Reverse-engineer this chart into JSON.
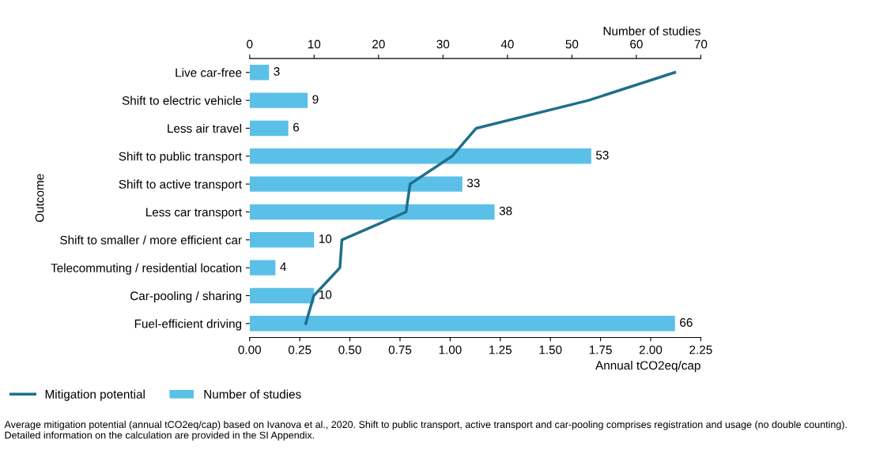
{
  "chart_data": {
    "type": "bar",
    "orientation": "horizontal",
    "ylabel": "Outcome",
    "xlabel": "Annual tCO2eq/cap",
    "x2label": "Number of studies",
    "categories": [
      "Live car-free",
      "Shift to electric vehicle",
      "Less air travel",
      "Shift to public transport",
      "Shift to active transport",
      "Less car transport",
      "Shift to smaller / more efficient car",
      "Telecommuting / residential location",
      "Car-pooling / sharing",
      "Fuel-efficient driving"
    ],
    "series": [
      {
        "name": "Mitigation potential",
        "type": "line",
        "color": "#1f6f8b",
        "values": [
          2.12,
          1.69,
          1.13,
          1.01,
          0.8,
          0.78,
          0.46,
          0.45,
          0.32,
          0.28
        ]
      },
      {
        "name": "Number of studies",
        "axis": "x2",
        "color": "#5bc0e8",
        "values": [
          3,
          9,
          6,
          53,
          33,
          38,
          10,
          4,
          10,
          66
        ],
        "value_labels": [
          "3",
          "9",
          "6",
          "53",
          "33",
          "38",
          "10",
          "4",
          "10",
          "66"
        ]
      }
    ],
    "xlim": [
      0,
      2.25
    ],
    "xticks": [
      {
        "value": 0,
        "label": "0.00"
      },
      {
        "value": 0.25,
        "label": "0.25"
      },
      {
        "value": 0.5,
        "label": "0.50"
      },
      {
        "value": 0.75,
        "label": "0.75"
      },
      {
        "value": 1,
        "label": "1.00"
      },
      {
        "value": 1.25,
        "label": "1.25"
      },
      {
        "value": 1.5,
        "label": "1.50"
      },
      {
        "value": 1.75,
        "label": "1.75"
      },
      {
        "value": 2,
        "label": "2.00"
      },
      {
        "value": 2.25,
        "label": "2.25"
      }
    ],
    "x2lim": [
      0,
      70
    ],
    "x2ticks": [
      0,
      10,
      20,
      30,
      40,
      50,
      60,
      70
    ],
    "legend": "bottom left",
    "grid": false,
    "marker": "none",
    "line_style": "solid",
    "annotations": [
      "Average mitigation potential (annual tCO2eq/cap) based on Ivanova et al., 2020. Shift to public transport, active transport and car-pooling comprises registration and usage (no double counting). Detailed information on the calculation are provided in the SI Appendix."
    ]
  }
}
